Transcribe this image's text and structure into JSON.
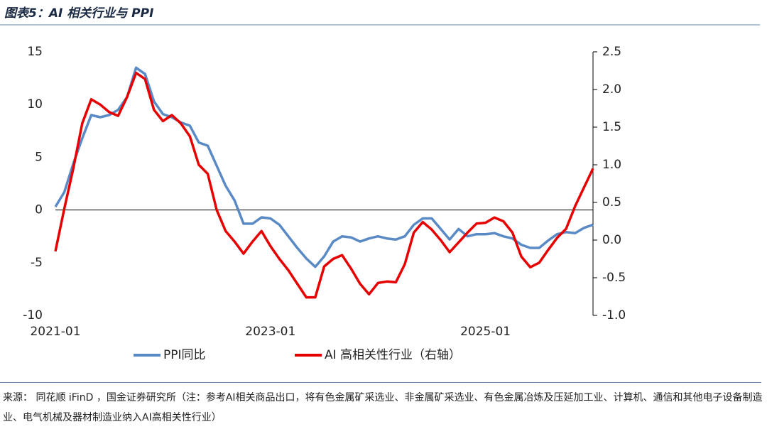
{
  "chart_data": {
    "type": "line",
    "title": "图表5：AI 相关行业与 PPI",
    "note": "来源：  同花顺 iFinD ，国金证券研究所（注：参考AI相关商品出口，将有色金属矿采选业、非金属矿采选业、有色金属冶炼及压延加工业、计算机、通信和其他电子设备制造业、电气机械及器材制造业纳入AI高相关性行业）",
    "categories": [
      "2021-01",
      null,
      null,
      null,
      null,
      null,
      null,
      null,
      null,
      null,
      null,
      null,
      null,
      null,
      null,
      null,
      null,
      null,
      null,
      null,
      null,
      null,
      null,
      null,
      "2023-01",
      null,
      null,
      null,
      null,
      null,
      null,
      null,
      null,
      null,
      null,
      null,
      null,
      null,
      null,
      null,
      null,
      null,
      null,
      null,
      null,
      null,
      null,
      null,
      "2025-01",
      null,
      null,
      null,
      null,
      null,
      null,
      null,
      null,
      null,
      null,
      null,
      null
    ],
    "series": [
      {
        "name": "PPI同比",
        "color": "#5a8ac6",
        "values": [
          0.3,
          1.7,
          4.4,
          6.8,
          9.0,
          8.8,
          9.0,
          9.5,
          10.7,
          13.5,
          12.9,
          10.3,
          9.1,
          8.8,
          8.3,
          8.0,
          6.4,
          6.1,
          4.2,
          2.3,
          0.9,
          -1.3,
          -1.3,
          -0.7,
          -0.8,
          -1.4,
          -2.5,
          -3.6,
          -4.6,
          -5.4,
          -4.4,
          -3.0,
          -2.5,
          -2.6,
          -3.0,
          -2.7,
          -2.5,
          -2.7,
          -2.8,
          -2.5,
          -1.4,
          -0.8,
          -0.8,
          -1.8,
          -2.8,
          -1.8,
          -2.5,
          -2.3,
          -2.3,
          -2.2,
          -2.5,
          -2.7,
          -3.3,
          -3.6,
          -3.6,
          -2.9,
          -2.3,
          -2.1,
          -2.2,
          -1.7,
          -1.4
        ]
      },
      {
        "name": "AI 高相关性行业（右轴）",
        "color": "#e60000",
        "axis": "y2",
        "values": [
          -0.15,
          0.42,
          0.95,
          1.55,
          1.87,
          1.8,
          1.7,
          1.65,
          1.9,
          2.22,
          2.14,
          1.73,
          1.58,
          1.66,
          1.55,
          1.38,
          1.0,
          0.88,
          0.4,
          0.12,
          -0.02,
          -0.18,
          -0.02,
          0.12,
          -0.08,
          -0.25,
          -0.4,
          -0.58,
          -0.76,
          -0.76,
          -0.35,
          -0.25,
          -0.2,
          -0.38,
          -0.58,
          -0.72,
          -0.57,
          -0.55,
          -0.56,
          -0.32,
          0.1,
          0.24,
          0.14,
          0.0,
          -0.16,
          -0.03,
          0.1,
          0.22,
          0.23,
          0.3,
          0.25,
          0.1,
          -0.22,
          -0.36,
          -0.3,
          -0.13,
          0.03,
          0.15,
          0.45,
          0.7,
          0.95
        ]
      }
    ],
    "ylim": [
      -10,
      15
    ],
    "yticks": [
      -10,
      -5,
      0,
      5,
      10,
      15
    ],
    "y2lim": [
      -1,
      2.5
    ],
    "y2ticks": [
      {
        "value": -1,
        "label": "-1.0"
      },
      -0.5,
      {
        "value": 0,
        "label": "0.0"
      },
      0.5,
      {
        "value": 1,
        "label": "1.0"
      },
      1.5,
      {
        "value": 2,
        "label": "2.0"
      },
      2.5
    ],
    "legend": "bottom"
  }
}
